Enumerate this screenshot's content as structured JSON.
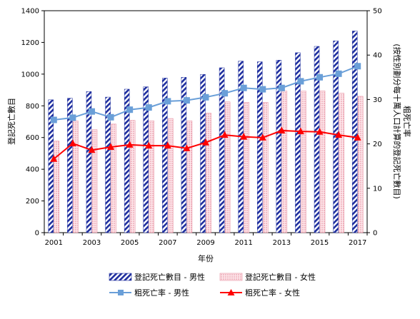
{
  "chart_data": {
    "type": "bar+line",
    "title": "",
    "xlabel": "年份",
    "ylabel_left": "登記死亡數目",
    "ylabel_right": "粗死亡率 (按性別劃分每十萬人口計算的登記死亡數目)",
    "ylim_left": [
      0,
      1400
    ],
    "ylim_right": [
      0,
      50
    ],
    "yticks_left": [
      "0",
      "200",
      "400",
      "600",
      "800",
      "1000",
      "1200",
      "1400"
    ],
    "yticks_right": [
      "0",
      "10",
      "20",
      "30",
      "40",
      "50"
    ],
    "categories": [
      "2001",
      "2002",
      "2003",
      "2004",
      "2005",
      "2006",
      "2007",
      "2008",
      "2009",
      "2010",
      "2011",
      "2012",
      "2013",
      "2014",
      "2015",
      "2016",
      "2017"
    ],
    "xtick_labels": [
      "2001",
      "",
      "2003",
      "",
      "2005",
      "",
      "2007",
      "",
      "2009",
      "",
      "2011",
      "",
      "2013",
      "",
      "2015",
      "",
      "2017"
    ],
    "bar_series": [
      {
        "name": "登記死亡數目 - 男性",
        "values": [
          838,
          848,
          890,
          855,
          905,
          920,
          975,
          980,
          998,
          1040,
          1082,
          1078,
          1088,
          1135,
          1175,
          1210,
          1272
        ],
        "color": "#1f2f9f",
        "pattern": "diagonal-stripe"
      },
      {
        "name": "登記死亡數目 - 女性",
        "values": [
          578,
          705,
          650,
          685,
          708,
          705,
          720,
          705,
          755,
          825,
          822,
          822,
          893,
          893,
          894,
          880,
          860
        ],
        "color": "#f4b6c2",
        "pattern": "dotted"
      }
    ],
    "line_series": [
      {
        "name": "粗死亡率 - 男性",
        "values": [
          25.4,
          25.9,
          27.3,
          26.0,
          27.7,
          28.2,
          29.6,
          29.8,
          30.5,
          31.4,
          32.6,
          32.3,
          32.6,
          34.1,
          35.0,
          35.8,
          37.5
        ],
        "color": "#6a9fd8",
        "marker": "square"
      },
      {
        "name": "粗死亡率 - 女性",
        "values": [
          16.6,
          20.1,
          18.6,
          19.3,
          19.8,
          19.6,
          19.6,
          19.0,
          20.3,
          22.0,
          21.6,
          21.4,
          23.0,
          22.8,
          22.7,
          22.0,
          21.4
        ],
        "color": "#ff0000",
        "marker": "triangle"
      }
    ],
    "grid": false,
    "legend_position": "bottom"
  }
}
